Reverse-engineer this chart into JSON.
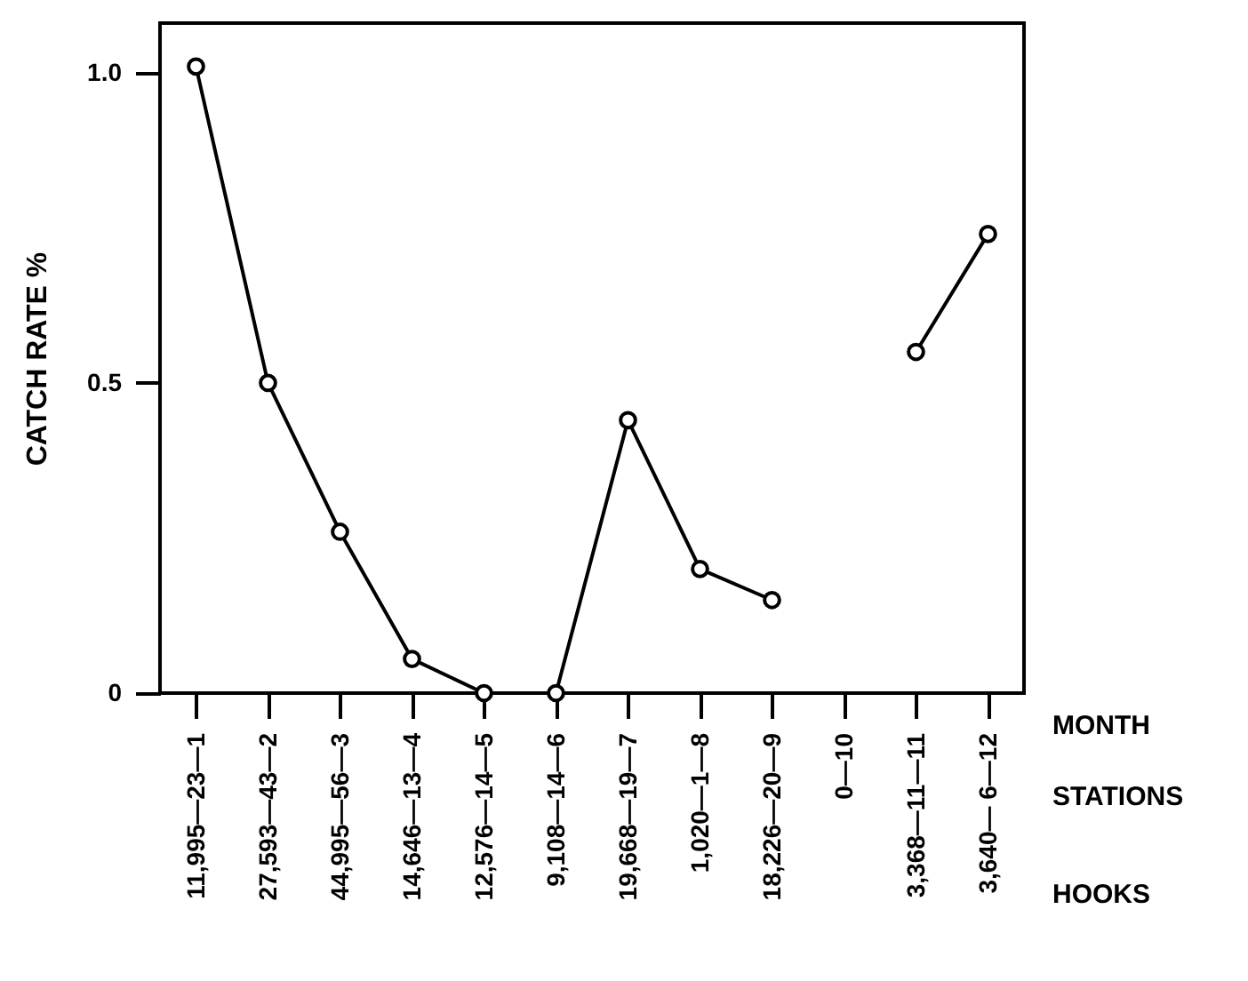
{
  "chart_data": {
    "type": "line",
    "ylabel": "CATCH RATE %",
    "categories": [
      "11,995—23—1",
      "27,593—43—2",
      "44,995—56—3",
      "14,646—13—4",
      "12,576—14—5",
      "9,108—14—6",
      "19,668—19—7",
      "1,020—1—8",
      "18,226—20—9",
      "0—10",
      "3,368—11—11",
      "3,640— 6—12"
    ],
    "series": [
      {
        "color": "#000000",
        "values": [
          1.01,
          0.5,
          0.26,
          0.055,
          0,
          0,
          0.44,
          0.2,
          0.15,
          null,
          0.55,
          0.74
        ]
      }
    ],
    "ylim": [
      0,
      1.08
    ],
    "yticks": [
      0,
      0.5,
      {
        "value": 1,
        "label": "1.0"
      }
    ],
    "marker": "circle",
    "line_style": "solid",
    "annotations": [
      "MONTH",
      "STATIONS",
      "HOOKS"
    ]
  }
}
